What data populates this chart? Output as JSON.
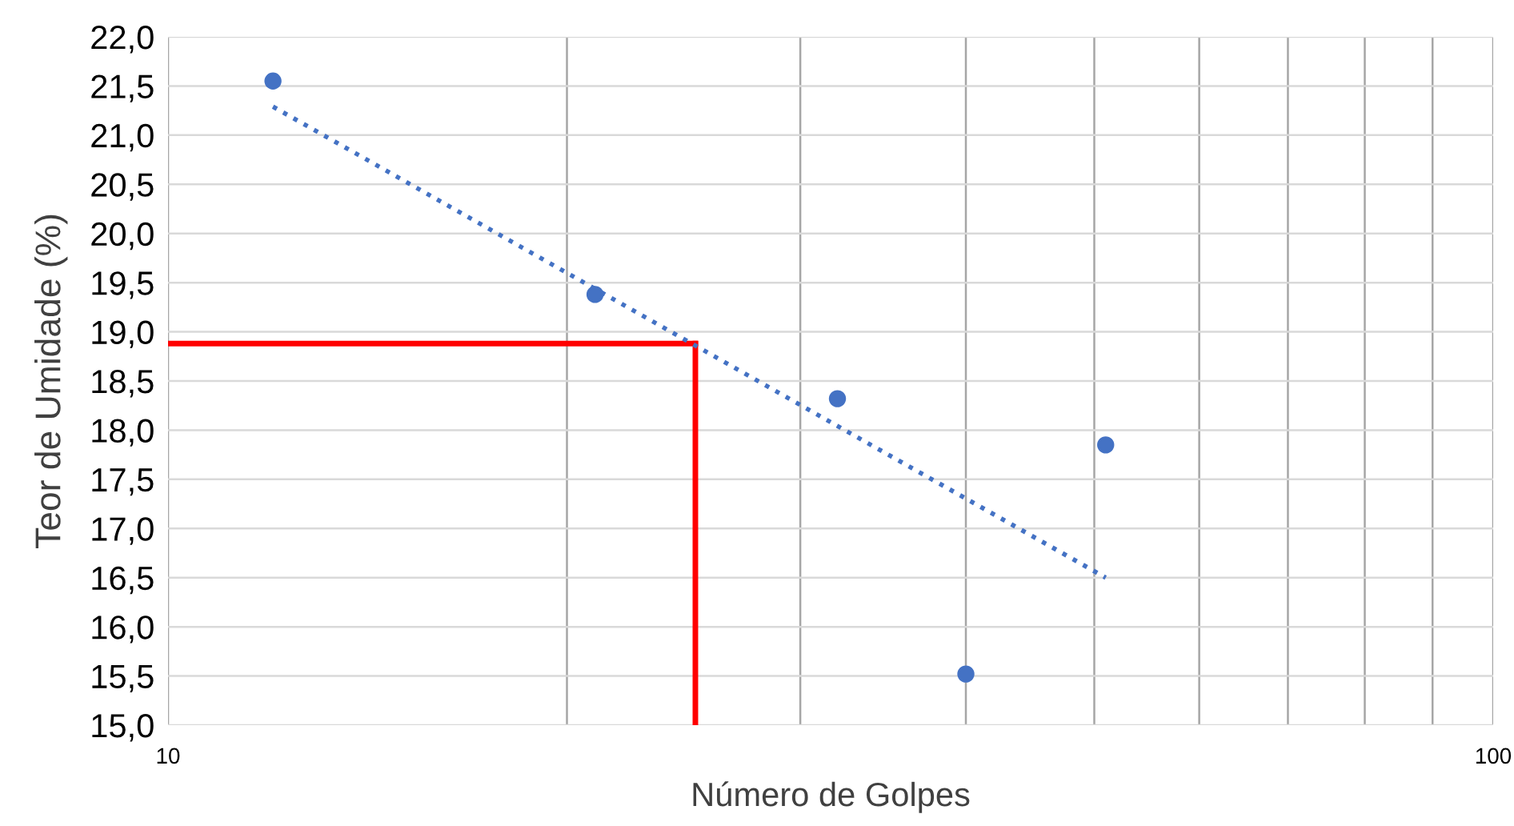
{
  "chart_data": {
    "type": "scatter",
    "xlabel": "Número de Golpes",
    "ylabel": "Teor de Umidade (%)",
    "log": "x",
    "xlim": [
      10,
      100
    ],
    "xticks": [
      10,
      {
        "value": 20,
        "label": null
      },
      {
        "value": 30,
        "label": null
      },
      {
        "value": 40,
        "label": null
      },
      {
        "value": 50,
        "label": null
      },
      {
        "value": 60,
        "label": null
      },
      {
        "value": 70,
        "label": null
      },
      {
        "value": 80,
        "label": null
      },
      {
        "value": 90,
        "label": null
      },
      100
    ],
    "ylim": [
      15,
      22
    ],
    "yticks": [
      {
        "value": 15,
        "label": "15,0"
      },
      {
        "value": 15.5,
        "label": "15,5"
      },
      {
        "value": 16,
        "label": "16,0"
      },
      {
        "value": 16.5,
        "label": "16,5"
      },
      {
        "value": 17,
        "label": "17,0"
      },
      {
        "value": 17.5,
        "label": "17,5"
      },
      {
        "value": 18,
        "label": "18,0"
      },
      {
        "value": 18.5,
        "label": "18,5"
      },
      {
        "value": 19,
        "label": "19,0"
      },
      {
        "value": 19.5,
        "label": "19,5"
      },
      {
        "value": 20,
        "label": "20,0"
      },
      {
        "value": 20.5,
        "label": "20,5"
      },
      {
        "value": 21,
        "label": "21,0"
      },
      {
        "value": 21.5,
        "label": "21,5"
      },
      {
        "value": 22,
        "label": "22,0"
      }
    ],
    "grid": true,
    "marker": "circle",
    "series": [
      {
        "color": "#4472c4",
        "x": [
          12,
          21,
          32,
          40,
          51
        ],
        "values": [
          21.55,
          19.38,
          18.32,
          15.52,
          17.85
        ]
      },
      {
        "type": "line",
        "color": "#4472c4",
        "line_style": "dotted",
        "marker": "none",
        "x": [
          12,
          51
        ],
        "values": [
          21.29,
          16.5
        ]
      }
    ],
    "ref_lines": [
      {
        "axis": "x",
        "value": 25,
        "color": "#ff0000"
      },
      {
        "axis": "y",
        "value": 18.88,
        "color": "#ff0000"
      }
    ]
  }
}
